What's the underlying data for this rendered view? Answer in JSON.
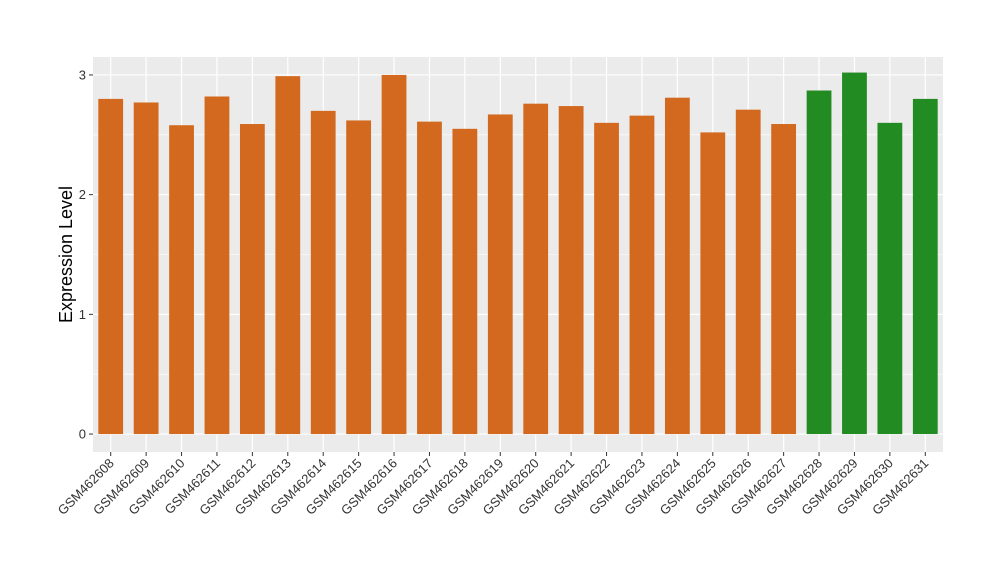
{
  "chart_data": {
    "type": "bar",
    "title": "",
    "xlabel": "",
    "ylabel": "Expression Level",
    "ylim": [
      -0.15,
      3.15
    ],
    "yticks": [
      0,
      1,
      2,
      3
    ],
    "grid": true,
    "background": "#ebebeb",
    "grid_color": "#ffffff",
    "categories": [
      "GSM462608",
      "GSM462609",
      "GSM462610",
      "GSM462611",
      "GSM462612",
      "GSM462613",
      "GSM462614",
      "GSM462615",
      "GSM462616",
      "GSM462617",
      "GSM462618",
      "GSM462619",
      "GSM462620",
      "GSM462621",
      "GSM462622",
      "GSM462623",
      "GSM462624",
      "GSM462625",
      "GSM462626",
      "GSM462627",
      "GSM462628",
      "GSM462629",
      "GSM462630",
      "GSM462631"
    ],
    "values": [
      2.8,
      2.77,
      2.58,
      2.82,
      2.59,
      2.99,
      2.7,
      2.62,
      3.0,
      2.61,
      2.55,
      2.67,
      2.76,
      2.74,
      2.6,
      2.66,
      2.81,
      2.52,
      2.71,
      2.59,
      2.87,
      3.02,
      2.6,
      2.8
    ],
    "colors": [
      "#d2691e",
      "#d2691e",
      "#d2691e",
      "#d2691e",
      "#d2691e",
      "#d2691e",
      "#d2691e",
      "#d2691e",
      "#d2691e",
      "#d2691e",
      "#d2691e",
      "#d2691e",
      "#d2691e",
      "#d2691e",
      "#d2691e",
      "#d2691e",
      "#d2691e",
      "#d2691e",
      "#d2691e",
      "#d2691e",
      "#228b22",
      "#228b22",
      "#228b22",
      "#228b22"
    ]
  }
}
